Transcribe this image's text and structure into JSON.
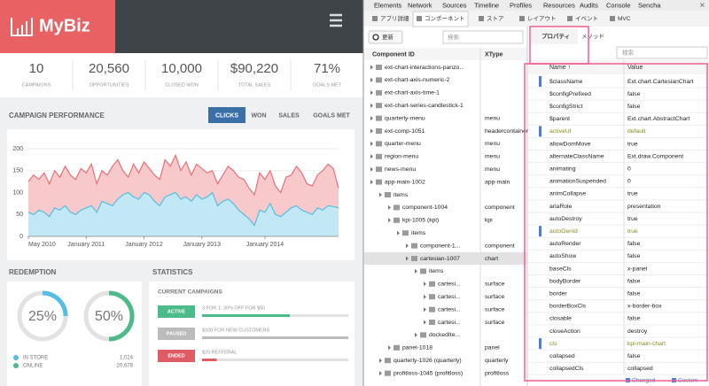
{
  "app": {
    "brand": "MyBiz",
    "kpis": [
      {
        "value": "10",
        "label": "CAMPAIGNS"
      },
      {
        "value": "20,560",
        "label": "OPPORTUNITIES"
      },
      {
        "value": "10,000",
        "label": "CLOSED WON"
      },
      {
        "value": "$90,220",
        "label": "TOTAL SALES"
      },
      {
        "value": "71%",
        "label": "GOALS MET"
      }
    ],
    "performance": {
      "title": "CAMPAIGN PERFORMANCE",
      "tabs": [
        "CLICKS",
        "WON",
        "SALES",
        "GOALS MET"
      ],
      "active_tab": 0,
      "chart": {
        "type": "area",
        "ylim": [
          0,
          200
        ],
        "yticks": [
          0,
          50,
          100,
          150,
          200
        ],
        "grid": true,
        "xticks": [
          {
            "value": 0,
            "label": "May 2010"
          },
          {
            "value": 11,
            "label": "January 2011"
          },
          {
            "value": 22,
            "label": "January 2012"
          },
          {
            "value": 33,
            "label": "January 2013"
          },
          {
            "value": 45,
            "label": "January 2014"
          }
        ],
        "series": [
          {
            "color": "#e8707a",
            "fill": "#f7c9cb",
            "values": [
              125,
              140,
              130,
              145,
              120,
              150,
              135,
              160,
              140,
              130,
              155,
              145,
              165,
              120,
              150,
              140,
              160,
              175,
              150,
              135,
              165,
              145,
              170,
              155,
              140,
              130,
              175,
              160,
              185,
              150,
              170,
              140,
              165,
              155,
              145,
              150,
              120,
              140,
              160,
              150,
              135,
              130,
              110,
              95,
              145,
              130,
              150,
              115,
              100,
              135,
              140,
              160,
              145,
              120,
              115,
              140,
              150,
              165,
              155,
              110
            ]
          },
          {
            "color": "#55bde6",
            "fill": "#c2e8f6",
            "values": [
              55,
              50,
              60,
              55,
              45,
              65,
              60,
              70,
              55,
              50,
              60,
              65,
              70,
              55,
              80,
              75,
              70,
              85,
              95,
              100,
              90,
              85,
              100,
              95,
              80,
              70,
              90,
              95,
              100,
              85,
              90,
              80,
              95,
              85,
              90,
              100,
              70,
              80,
              85,
              75,
              60,
              50,
              40,
              25,
              60,
              55,
              75,
              50,
              45,
              55,
              65,
              70,
              60,
              55,
              50,
              65,
              60,
              70,
              68,
              65
            ]
          }
        ]
      }
    },
    "redemption": {
      "title": "REDEMPTION",
      "gauges": [
        {
          "value": 25,
          "label": "25%",
          "color": "#55bde6"
        },
        {
          "value": 50,
          "label": "50%",
          "color": "#4cbb8a"
        }
      ],
      "legend": [
        {
          "name": "IN STORE",
          "value": "1,024",
          "color": "#55bde6"
        },
        {
          "name": "ONLINE",
          "value": "20,678",
          "color": "#4cbb8a"
        }
      ]
    },
    "statistics": {
      "title": "STATISTICS",
      "subtitle": "CURRENT CAMPAIGNS",
      "campaigns": [
        {
          "status": "ACTIVE",
          "name": "3 FOR 1, 30% OFF FOR $50",
          "progress": 60,
          "color": "#4cbb8a"
        },
        {
          "status": "PAUSED",
          "name": "$100 FOR NEW CUSTOMERS",
          "progress": 100,
          "color": "#bbbbbb"
        },
        {
          "status": "ENDED",
          "name": "$20 REFFERAL",
          "progress": 10,
          "color": "#e05c65"
        }
      ]
    }
  },
  "devtools": {
    "tabs": [
      "Elements",
      "Network",
      "Sources",
      "Timeline",
      "Profiles",
      "Resources",
      "Audits",
      "Console",
      "Sencha"
    ],
    "sencha_tabs": [
      "アプリ詳細",
      "コンポーネント",
      "ストア",
      "レイアウト",
      "イベント",
      "MVC"
    ],
    "refresh": "更新",
    "search": "検索",
    "property_tabs": [
      "プロパティ",
      "メソッド"
    ],
    "property_search": "検索",
    "tree": {
      "columns": [
        "Component ID",
        "XType"
      ],
      "rows": [
        {
          "id": "ext-chart-interactions-panzo...",
          "depth": 0
        },
        {
          "id": "ext-chart-axis-numeric-2",
          "depth": 0
        },
        {
          "id": "ext-chart-axis-time-1",
          "depth": 0
        },
        {
          "id": "ext-chart-series-candlestick-1",
          "depth": 0
        },
        {
          "id": "quarterly-menu",
          "xtype": "menu",
          "depth": 0
        },
        {
          "id": "ext-comp-1051",
          "xtype": "headercontainer",
          "depth": 0
        },
        {
          "id": "quarter-menu",
          "xtype": "menu",
          "depth": 0
        },
        {
          "id": "region-menu",
          "xtype": "menu",
          "depth": 0
        },
        {
          "id": "news-menu",
          "xtype": "menu",
          "depth": 0
        },
        {
          "id": "app-main-1002",
          "xtype": "app-main",
          "depth": 0
        },
        {
          "id": "items",
          "depth": 1
        },
        {
          "id": "component-1004",
          "xtype": "component",
          "depth": 2
        },
        {
          "id": "kpi-1005 (kpi)",
          "xtype": "kpi",
          "depth": 2
        },
        {
          "id": "items",
          "depth": 3
        },
        {
          "id": "component-1...",
          "xtype": "component",
          "depth": 4
        },
        {
          "id": "cartesian-1007",
          "xtype": "chart",
          "depth": 4,
          "selected": true
        },
        {
          "id": "items",
          "depth": 5
        },
        {
          "id": "cartesi...",
          "xtype": "surface",
          "depth": 6
        },
        {
          "id": "cartesi...",
          "xtype": "surface",
          "depth": 6
        },
        {
          "id": "cartesi...",
          "xtype": "surface",
          "depth": 6
        },
        {
          "id": "cartesi...",
          "xtype": "surface",
          "depth": 6
        },
        {
          "id": "dockedIte...",
          "depth": 5
        },
        {
          "id": "panel-1018",
          "xtype": "panel",
          "depth": 2
        },
        {
          "id": "quarterly-1026 (quarterly)",
          "xtype": "quarterly",
          "depth": 1
        },
        {
          "id": "profitloss-1045 (profitloss)",
          "xtype": "profitloss",
          "depth": 1
        }
      ]
    },
    "properties": {
      "columns": [
        "Name ↑",
        "Value"
      ],
      "rows": [
        {
          "name": "$className",
          "value": "Ext.chart.CartesianChart",
          "changed": true
        },
        {
          "name": "$configPrefixed",
          "value": "false"
        },
        {
          "name": "$configStrict",
          "value": "false"
        },
        {
          "name": "$parent",
          "value": "Ext.chart.AbstractChart"
        },
        {
          "name": "activeUI",
          "value": "default",
          "changed": true,
          "custom": true
        },
        {
          "name": "allowDomMove",
          "value": "true"
        },
        {
          "name": "alternateClassName",
          "value": "Ext.draw.Component"
        },
        {
          "name": "animating",
          "value": "0"
        },
        {
          "name": "animationSuspended",
          "value": "0"
        },
        {
          "name": "animCollapse",
          "value": "true"
        },
        {
          "name": "ariaRole",
          "value": "presentation"
        },
        {
          "name": "autoDestroy",
          "value": "true"
        },
        {
          "name": "autoGenId",
          "value": "true",
          "changed": true,
          "custom": true
        },
        {
          "name": "autoRender",
          "value": "false"
        },
        {
          "name": "autoShow",
          "value": "false"
        },
        {
          "name": "baseCls",
          "value": "x-panel"
        },
        {
          "name": "bodyBorder",
          "value": "false"
        },
        {
          "name": "border",
          "value": "false"
        },
        {
          "name": "borderBoxCls",
          "value": "x-border-box"
        },
        {
          "name": "closable",
          "value": "false"
        },
        {
          "name": "closeAction",
          "value": "destroy"
        },
        {
          "name": "cls",
          "value": "kpi-main-chart",
          "changed": true,
          "custom": true
        },
        {
          "name": "collapsed",
          "value": "false"
        },
        {
          "name": "collapsedCls",
          "value": "collapsed"
        }
      ],
      "legend": [
        "Changed",
        "Custom"
      ]
    }
  }
}
